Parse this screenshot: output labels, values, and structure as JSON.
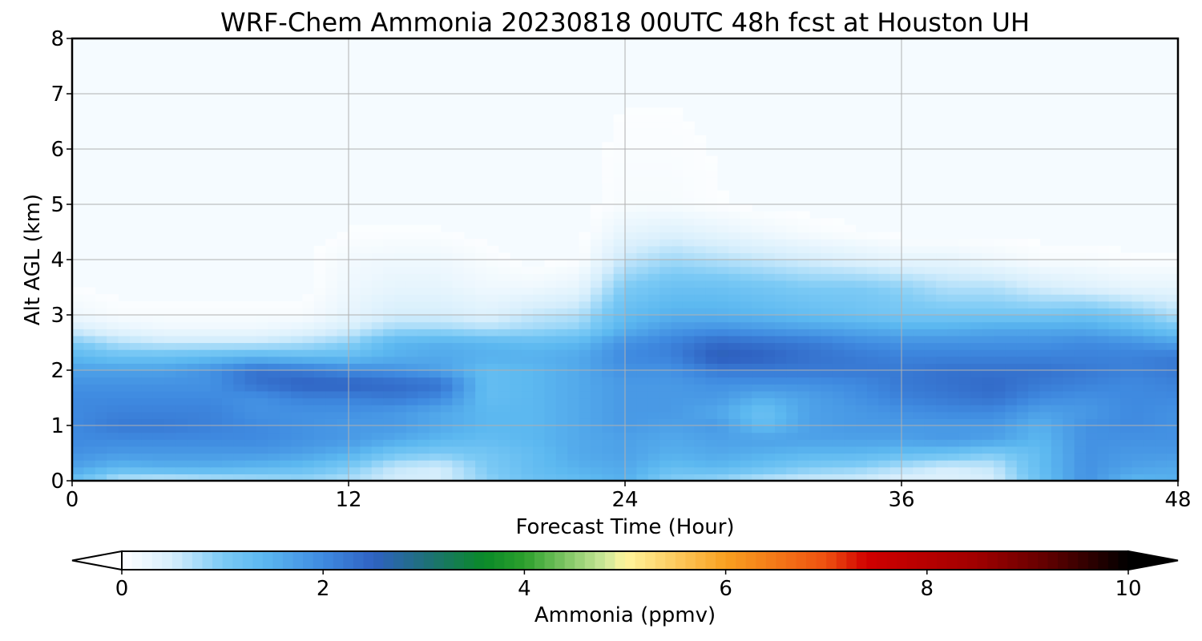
{
  "chart_data": {
    "type": "heatmap",
    "title": "WRF-Chem Ammonia  20230818 00UTC 48h fcst at Houston UH",
    "xlabel": "Forecast Time (Hour)",
    "ylabel": "Alt AGL (km)",
    "xlim": [
      0,
      48
    ],
    "ylim": [
      0,
      8
    ],
    "x_ticks": [
      "0",
      "12",
      "24",
      "36",
      "48"
    ],
    "y_ticks": [
      "0",
      "1",
      "2",
      "3",
      "4",
      "5",
      "6",
      "7",
      "8"
    ],
    "grid": true,
    "colorbar": {
      "label": "Ammonia  (ppmv)",
      "range": [
        0,
        10
      ],
      "ticks": [
        "0",
        "2",
        "4",
        "6",
        "8",
        "10"
      ],
      "extend": "both",
      "stops": [
        {
          "v": 0,
          "c": "#ffffff"
        },
        {
          "v": 0.5,
          "c": "#d6eefc"
        },
        {
          "v": 1.0,
          "c": "#7ccaf5"
        },
        {
          "v": 1.4,
          "c": "#5cb8f0"
        },
        {
          "v": 2.0,
          "c": "#3f8ae0"
        },
        {
          "v": 2.5,
          "c": "#2f62c2"
        },
        {
          "v": 3.0,
          "c": "#1f6f7c"
        },
        {
          "v": 3.6,
          "c": "#0a8a28"
        },
        {
          "v": 4.0,
          "c": "#2ca02c"
        },
        {
          "v": 4.8,
          "c": "#cde89a"
        },
        {
          "v": 5.0,
          "c": "#fff59d"
        },
        {
          "v": 6.0,
          "c": "#f9a020"
        },
        {
          "v": 7.0,
          "c": "#ee5010"
        },
        {
          "v": 7.4,
          "c": "#d00000"
        },
        {
          "v": 8.5,
          "c": "#a00000"
        },
        {
          "v": 9.2,
          "c": "#600000"
        },
        {
          "v": 10.0,
          "c": "#000000"
        }
      ]
    },
    "field": {
      "times": [
        0,
        2,
        4,
        6,
        8,
        10,
        12,
        14,
        16,
        18,
        20,
        22,
        24,
        26,
        28,
        30,
        32,
        34,
        36,
        38,
        40,
        42,
        44,
        46,
        48
      ],
      "altitudes": [
        0,
        0.25,
        0.5,
        0.75,
        1.0,
        1.25,
        1.5,
        1.75,
        2.0,
        2.25,
        2.5,
        2.75,
        3.0,
        3.5,
        4.0,
        4.5,
        5.0,
        8.0
      ],
      "values_ppmv": [
        [
          1.2,
          0.6,
          0.5,
          0.6,
          0.7,
          0.8,
          0.7,
          0.5,
          0.5,
          0.9,
          1.2,
          1.3,
          1.5,
          0.9,
          0.8,
          0.6,
          0.5,
          0.5,
          0.4,
          0.4,
          0.5,
          1.2,
          1.9,
          1.4,
          1.5
        ],
        [
          1.7,
          1.4,
          1.5,
          1.5,
          1.4,
          1.3,
          1.0,
          0.6,
          0.5,
          1.0,
          1.3,
          1.5,
          1.6,
          1.3,
          1.4,
          1.2,
          1.0,
          0.9,
          0.7,
          0.5,
          0.6,
          1.3,
          1.9,
          1.7,
          1.6
        ],
        [
          1.9,
          1.8,
          1.8,
          1.8,
          1.8,
          1.7,
          1.5,
          1.1,
          1.0,
          1.1,
          1.3,
          1.6,
          1.7,
          1.5,
          1.6,
          1.5,
          1.4,
          1.4,
          1.3,
          1.2,
          1.0,
          1.3,
          1.9,
          1.8,
          1.8
        ],
        [
          2.0,
          2.0,
          2.0,
          2.0,
          2.0,
          1.9,
          1.8,
          1.6,
          1.4,
          1.3,
          1.4,
          1.6,
          1.7,
          1.6,
          1.7,
          1.7,
          1.7,
          1.7,
          1.7,
          1.8,
          1.7,
          1.4,
          1.9,
          1.9,
          1.9
        ],
        [
          2.0,
          2.2,
          2.2,
          2.1,
          2.0,
          1.9,
          1.8,
          1.8,
          1.6,
          1.4,
          1.4,
          1.6,
          1.8,
          1.7,
          1.8,
          1.3,
          1.7,
          1.8,
          1.8,
          1.8,
          1.8,
          1.5,
          1.9,
          2.0,
          1.9
        ],
        [
          2.0,
          2.1,
          2.1,
          2.1,
          1.9,
          1.9,
          1.9,
          1.8,
          1.6,
          1.4,
          1.4,
          1.6,
          1.8,
          1.8,
          1.6,
          1.2,
          1.7,
          1.8,
          1.9,
          2.0,
          2.0,
          1.7,
          1.8,
          2.0,
          1.9
        ],
        [
          2.0,
          2.0,
          2.0,
          2.0,
          1.9,
          2.1,
          2.1,
          2.2,
          2.0,
          1.3,
          1.4,
          1.6,
          1.8,
          1.8,
          1.8,
          1.5,
          1.7,
          1.9,
          2.1,
          2.2,
          2.3,
          2.0,
          1.9,
          2.0,
          2.0
        ],
        [
          1.9,
          1.9,
          1.9,
          1.9,
          2.3,
          2.5,
          2.5,
          2.4,
          2.3,
          1.3,
          1.4,
          1.6,
          1.8,
          1.8,
          1.9,
          1.9,
          1.9,
          2.0,
          2.2,
          2.3,
          2.4,
          2.2,
          2.1,
          2.0,
          2.1
        ],
        [
          1.7,
          1.7,
          1.7,
          1.9,
          2.3,
          2.2,
          2.0,
          1.9,
          1.7,
          1.3,
          1.4,
          1.6,
          1.9,
          1.9,
          2.2,
          2.2,
          2.2,
          2.2,
          2.2,
          2.3,
          2.3,
          2.3,
          2.2,
          2.1,
          2.2
        ],
        [
          1.4,
          1.2,
          1.2,
          1.3,
          1.4,
          1.3,
          1.3,
          1.5,
          1.6,
          1.5,
          1.5,
          1.6,
          2.0,
          2.1,
          2.6,
          2.5,
          2.3,
          2.2,
          2.1,
          2.1,
          2.1,
          2.1,
          2.1,
          2.1,
          2.2
        ],
        [
          1.0,
          0.7,
          0.6,
          0.6,
          0.6,
          0.7,
          0.9,
          1.4,
          1.5,
          1.4,
          1.3,
          1.4,
          1.9,
          2.1,
          2.4,
          2.3,
          2.2,
          2.0,
          1.9,
          1.9,
          1.9,
          1.9,
          2.0,
          1.9,
          1.7
        ],
        [
          0.5,
          0.3,
          0.2,
          0.2,
          0.2,
          0.3,
          0.5,
          0.8,
          0.8,
          0.7,
          0.8,
          0.9,
          1.5,
          1.8,
          1.9,
          1.8,
          1.7,
          1.6,
          1.5,
          1.5,
          1.6,
          1.6,
          1.6,
          1.4,
          1.1
        ],
        [
          0.2,
          0.1,
          0.1,
          0.1,
          0.1,
          0.1,
          0.3,
          0.5,
          0.5,
          0.4,
          0.6,
          0.7,
          1.3,
          1.5,
          1.5,
          1.4,
          1.3,
          1.2,
          1.1,
          1.1,
          1.1,
          1.1,
          1.2,
          1.0,
          0.7
        ],
        [
          0.05,
          0.0,
          0.0,
          0.0,
          0.0,
          0.0,
          0.2,
          0.3,
          0.3,
          0.2,
          0.2,
          0.3,
          1.0,
          1.2,
          1.2,
          1.1,
          1.0,
          1.0,
          0.9,
          0.7,
          0.7,
          0.5,
          0.4,
          0.3,
          0.3
        ],
        [
          0.0,
          0.0,
          0.0,
          0.0,
          0.0,
          0.0,
          0.15,
          0.2,
          0.2,
          0.1,
          0.0,
          0.05,
          0.6,
          0.8,
          0.7,
          0.6,
          0.5,
          0.4,
          0.3,
          0.3,
          0.2,
          0.1,
          0.1,
          0.05,
          0.05
        ],
        [
          0.0,
          0.0,
          0.0,
          0.0,
          0.0,
          0.0,
          0.05,
          0.05,
          0.05,
          0.0,
          0.0,
          0.0,
          0.3,
          0.4,
          0.3,
          0.2,
          0.1,
          0.05,
          0.0,
          0.0,
          0.0,
          0.0,
          0.0,
          0.0,
          0.0
        ],
        [
          0.0,
          0.0,
          0.0,
          0.0,
          0.0,
          0.0,
          0.0,
          0.0,
          0.0,
          0.0,
          0.0,
          0.0,
          0.1,
          0.1,
          0.05,
          0.0,
          0.0,
          0.0,
          0.0,
          0.0,
          0.0,
          0.0,
          0.0,
          0.0,
          0.0
        ],
        [
          0.0,
          0.0,
          0.0,
          0.0,
          0.0,
          0.0,
          0.0,
          0.0,
          0.0,
          0.0,
          0.0,
          0.0,
          0.0,
          0.0,
          0.0,
          0.0,
          0.0,
          0.0,
          0.0,
          0.0,
          0.0,
          0.0,
          0.0,
          0.0,
          0.0
        ]
      ]
    }
  }
}
